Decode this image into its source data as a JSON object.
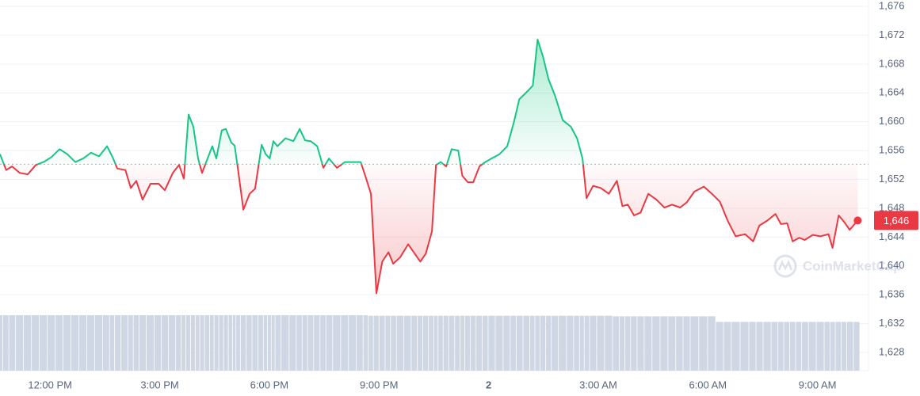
{
  "chart_data": {
    "type": "area-baseline",
    "x": [
      10.63,
      10.8,
      10.96,
      11.17,
      11.39,
      11.61,
      11.82,
      12.04,
      12.26,
      12.47,
      12.69,
      12.91,
      13.12,
      13.34,
      13.56,
      13.71,
      13.84,
      14.06,
      14.21,
      14.36,
      14.53,
      14.75,
      14.97,
      15.14,
      15.36,
      15.53,
      15.66,
      15.79,
      15.92,
      16.05,
      16.16,
      16.31,
      16.44,
      16.55,
      16.7,
      16.81,
      16.96,
      17.05,
      17.14,
      17.29,
      17.46,
      17.61,
      17.79,
      17.9,
      18.01,
      18.11,
      18.22,
      18.44,
      18.66,
      18.83,
      18.98,
      19.13,
      19.31,
      19.48,
      19.63,
      19.85,
      20.07,
      20.28,
      20.5,
      20.65,
      20.78,
      20.93,
      21.09,
      21.26,
      21.39,
      21.58,
      21.8,
      21.98,
      22.13,
      22.28,
      22.45,
      22.56,
      22.69,
      22.84,
      22.99,
      23.17,
      23.28,
      23.43,
      23.58,
      23.75,
      23.91,
      24.08,
      24.3,
      24.51,
      24.69,
      24.84,
      25.06,
      25.21,
      25.34,
      25.49,
      25.64,
      25.81,
      26.03,
      26.25,
      26.42,
      26.57,
      26.68,
      26.86,
      27.07,
      27.29,
      27.51,
      27.66,
      27.81,
      27.98,
      28.16,
      28.37,
      28.59,
      28.81,
      29.02,
      29.24,
      29.42,
      29.63,
      29.89,
      30.11,
      30.33,
      30.54,
      30.76,
      31.02,
      31.24,
      31.41,
      31.63,
      31.85,
      32.0,
      32.17,
      32.32,
      32.5,
      32.65,
      32.87,
      33.08,
      33.3,
      33.41,
      33.58,
      33.73,
      33.88,
      34.1
    ],
    "values": [
      1655.5,
      1653.3,
      1653.8,
      1652.9,
      1652.7,
      1654.0,
      1654.4,
      1655.1,
      1656.2,
      1655.5,
      1654.4,
      1654.9,
      1655.7,
      1655.2,
      1656.6,
      1655.1,
      1653.5,
      1653.3,
      1650.8,
      1651.8,
      1649.2,
      1651.4,
      1651.4,
      1650.5,
      1652.9,
      1654.0,
      1652.1,
      1661.0,
      1659.3,
      1654.9,
      1652.9,
      1654.9,
      1656.6,
      1654.9,
      1658.8,
      1659.0,
      1657.1,
      1656.7,
      1653.5,
      1647.8,
      1650.0,
      1650.7,
      1656.8,
      1655.5,
      1654.9,
      1657.3,
      1656.6,
      1657.7,
      1657.3,
      1659.0,
      1657.4,
      1657.3,
      1656.6,
      1653.6,
      1654.9,
      1653.6,
      1654.4,
      1654.4,
      1654.4,
      1652.1,
      1650.0,
      1636.2,
      1640.6,
      1641.9,
      1640.3,
      1641.2,
      1643.0,
      1641.7,
      1640.6,
      1641.7,
      1644.8,
      1654.0,
      1654.4,
      1653.8,
      1656.2,
      1656.0,
      1652.5,
      1651.6,
      1651.6,
      1653.8,
      1654.4,
      1654.9,
      1655.5,
      1656.6,
      1659.9,
      1663.1,
      1664.2,
      1665.0,
      1671.4,
      1669.0,
      1665.9,
      1663.7,
      1660.2,
      1659.3,
      1657.7,
      1654.9,
      1649.4,
      1651.1,
      1650.8,
      1650.0,
      1651.8,
      1648.3,
      1648.5,
      1647.0,
      1647.4,
      1650.0,
      1649.2,
      1648.1,
      1648.5,
      1648.1,
      1648.8,
      1650.3,
      1651.0,
      1650.0,
      1648.9,
      1646.3,
      1644.1,
      1644.4,
      1643.4,
      1645.6,
      1646.3,
      1647.2,
      1645.8,
      1645.9,
      1643.4,
      1643.9,
      1643.6,
      1644.3,
      1644.1,
      1644.4,
      1642.5,
      1647.0,
      1646.1,
      1645.0,
      1646.3
    ],
    "volume": [
      100,
      100,
      100,
      100,
      100,
      100,
      100,
      100,
      100,
      100,
      100,
      100,
      100,
      100,
      100,
      100,
      100,
      100,
      100,
      100,
      100,
      100,
      100,
      100,
      100,
      100,
      100,
      100,
      100,
      100,
      100,
      100,
      100,
      100,
      100,
      100,
      100,
      100,
      100,
      100,
      100,
      100,
      100,
      100,
      100,
      100,
      100,
      100,
      100,
      100,
      100,
      100,
      100,
      100,
      100,
      100,
      100,
      100,
      100,
      100,
      99,
      99,
      99,
      99,
      99,
      99,
      99,
      99,
      99,
      99,
      99,
      99,
      99,
      99,
      99,
      99,
      99,
      99,
      99,
      99,
      99,
      99,
      99,
      99,
      99,
      99,
      99,
      99,
      99,
      99,
      99,
      99,
      99,
      99,
      99,
      99,
      99,
      99,
      99,
      99,
      98,
      98,
      98,
      98,
      98,
      98,
      98,
      98,
      98,
      98,
      98,
      98,
      98,
      98,
      88,
      88,
      88,
      88,
      88,
      88,
      88,
      88,
      88,
      88,
      88,
      88,
      88,
      88,
      88,
      88,
      88,
      88,
      88,
      88,
      88
    ],
    "volume_ylim": [
      0,
      100
    ],
    "baseline": 1654.1,
    "up_color": "#16c784",
    "down_color": "#ea3943",
    "volume_color": "#cfd6e4",
    "price_label": "1,646",
    "watermark": "CoinMarketCap",
    "xlim": [
      10.63,
      34.2
    ],
    "xticks": [
      {
        "value": 12,
        "label": "12:00 PM"
      },
      {
        "value": 15,
        "label": "3:00 PM"
      },
      {
        "value": 18,
        "label": "6:00 PM"
      },
      {
        "value": 21,
        "label": "9:00 PM"
      },
      {
        "value": 24,
        "label": "2"
      },
      {
        "value": 27,
        "label": "3:00 AM"
      },
      {
        "value": 30,
        "label": "6:00 AM"
      },
      {
        "value": 33,
        "label": "9:00 AM"
      }
    ],
    "ylim": [
      1628,
      1676
    ],
    "yticks": [
      {
        "value": 1628,
        "label": "1,628"
      },
      {
        "value": 1632,
        "label": "1,632"
      },
      {
        "value": 1636,
        "label": "1,636"
      },
      {
        "value": 1640,
        "label": "1,640"
      },
      {
        "value": 1644,
        "label": "1,644"
      },
      {
        "value": 1648,
        "label": "1,648"
      },
      {
        "value": 1652,
        "label": "1,652"
      },
      {
        "value": 1656,
        "label": "1,656"
      },
      {
        "value": 1660,
        "label": "1,660"
      },
      {
        "value": 1664,
        "label": "1,664"
      },
      {
        "value": 1668,
        "label": "1,668"
      },
      {
        "value": 1672,
        "label": "1,672"
      },
      {
        "value": 1676,
        "label": "1,676"
      }
    ],
    "grid": true
  }
}
